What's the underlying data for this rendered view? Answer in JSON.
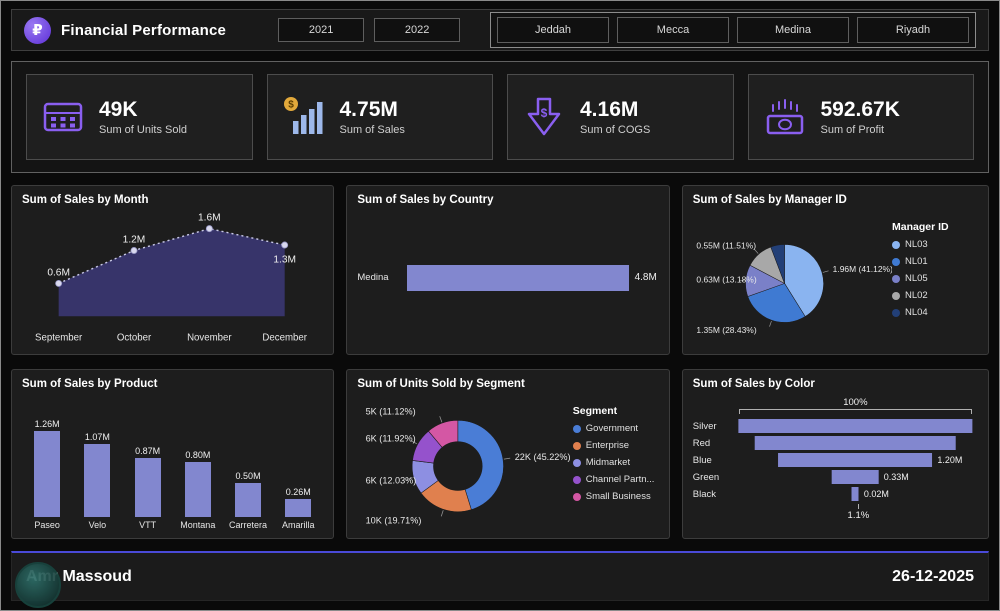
{
  "header": {
    "title": "Financial Performance",
    "logo_glyph": "₽",
    "years": [
      "2021",
      "2022"
    ],
    "cities": [
      "Jeddah",
      "Mecca",
      "Medina",
      "Riyadh"
    ]
  },
  "kpis": [
    {
      "value": "49K",
      "label": "Sum of Units Sold",
      "icon": "abacus-icon"
    },
    {
      "value": "4.75M",
      "label": "Sum of Sales",
      "icon": "sales-bars-coin-icon"
    },
    {
      "value": "4.16M",
      "label": "Sum of COGS",
      "icon": "down-arrow-dollar-icon"
    },
    {
      "value": "592.67K",
      "label": "Sum of Profit",
      "icon": "banknote-icon"
    }
  ],
  "accent_colors": {
    "purple_icon": "#8a5ff0",
    "bar_purple": "#8287cf",
    "divider_blue": "#4a4ad8"
  },
  "chart_data": [
    {
      "type": "area",
      "title": "Sum of Sales by Month",
      "categories": [
        "September",
        "October",
        "November",
        "December"
      ],
      "values": [
        600000,
        1200000,
        1600000,
        1300000
      ],
      "labels": [
        "0.6M",
        "1.2M",
        "1.6M",
        "1.3M"
      ],
      "ylim": [
        0,
        1600000
      ]
    },
    {
      "type": "bar",
      "orientation": "horizontal",
      "title": "Sum of Sales by Country",
      "categories": [
        "Medina"
      ],
      "values": [
        4800000
      ],
      "labels": [
        "4.8M"
      ]
    },
    {
      "type": "pie",
      "title": "Sum of Sales by Manager ID",
      "legend_title": "Manager ID",
      "legend_position": "right",
      "series": [
        {
          "name": "NL03",
          "label": "1.96M (41.12%)",
          "pct": 41.12,
          "color": "#8ab4f0"
        },
        {
          "name": "NL01",
          "label": "1.35M (28.43%)",
          "pct": 28.43,
          "color": "#3f7ad2"
        },
        {
          "name": "NL05",
          "label": "0.63M (13.18%)",
          "pct": 13.18,
          "color": "#7a80c8"
        },
        {
          "name": "NL02",
          "label": "0.55M (11.51%)",
          "pct": 11.51,
          "color": "#a8a8a8"
        },
        {
          "name": "NL04",
          "label": "",
          "pct": 5.76,
          "color": "#223f77"
        }
      ]
    },
    {
      "type": "pie",
      "subtype": "donut",
      "title": "Sum of Units Sold by Segment",
      "legend_title": "Segment",
      "legend_position": "right",
      "series": [
        {
          "name": "Government",
          "label": "22K (45.22%)",
          "pct": 45.22,
          "color": "#4a7dd6"
        },
        {
          "name": "Enterprise",
          "label": "10K (19.71%)",
          "pct": 19.71,
          "color": "#e0804e"
        },
        {
          "name": "Midmarket",
          "label": "6K (12.03%)",
          "pct": 12.03,
          "color": "#8d8fe2"
        },
        {
          "name": "Channel Partn...",
          "label": "6K (11.92%)",
          "pct": 11.92,
          "color": "#9552cc"
        },
        {
          "name": "Small Business",
          "label": "5K (11.12%)",
          "pct": 11.12,
          "color": "#d457a4"
        }
      ]
    },
    {
      "type": "bar",
      "title": "Sum of Sales by Product",
      "categories": [
        "Paseo",
        "Velo",
        "VTT",
        "Montana",
        "Carretera",
        "Amarilla"
      ],
      "values": [
        1260000,
        1070000,
        870000,
        800000,
        500000,
        260000
      ],
      "labels": [
        "1.26M",
        "1.07M",
        "0.87M",
        "0.80M",
        "0.50M",
        "0.26M"
      ]
    },
    {
      "type": "funnel",
      "title": "Sum of Sales by Color",
      "categories": [
        "Silver",
        "Red",
        "Blue",
        "Green",
        "Black"
      ],
      "labels": [
        "",
        "",
        "1.20M",
        "0.33M",
        "0.02M"
      ],
      "widths_pct": [
        100,
        86,
        66,
        20,
        3
      ],
      "top_label": "100%",
      "bottom_label": "1.1%"
    }
  ],
  "footer": {
    "name": "Amr Massoud",
    "date": "26-12-2025"
  }
}
